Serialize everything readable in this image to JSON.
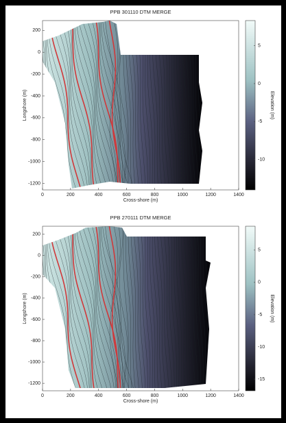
{
  "chart_data": [
    {
      "type": "contour",
      "title": "PPB 301110 DTM MERGE",
      "xlabel": "Cross-shore (m)",
      "ylabel": "Longshore (m)",
      "xlim": [
        0,
        1400
      ],
      "xticks": [
        0,
        200,
        400,
        600,
        800,
        1000,
        1200,
        1400
      ],
      "ylim": [
        -1260,
        290
      ],
      "yticks": [
        -1200,
        -1000,
        -800,
        -600,
        -400,
        -200,
        0,
        200
      ],
      "colorbar": {
        "label": "Elevation (m)",
        "lim": [
          -14,
          8.3
        ],
        "ticks": [
          -10,
          -5,
          0,
          5
        ]
      }
    },
    {
      "type": "contour",
      "title": "PPB 270111 DTM MERGE",
      "xlabel": "Cross-shore (m)",
      "ylabel": "Longshore (m)",
      "xlim": [
        0,
        1400
      ],
      "xticks": [
        0,
        200,
        400,
        600,
        800,
        1000,
        1200,
        1400
      ],
      "ylim": [
        -1270,
        275
      ],
      "yticks": [
        -1200,
        -1000,
        -800,
        -600,
        -400,
        -200,
        0,
        200
      ],
      "colorbar": {
        "label": "Elevation (m)",
        "lim": [
          -16.8,
          8.7
        ],
        "ticks": [
          -15,
          -10,
          -5,
          0,
          5
        ]
      }
    }
  ]
}
